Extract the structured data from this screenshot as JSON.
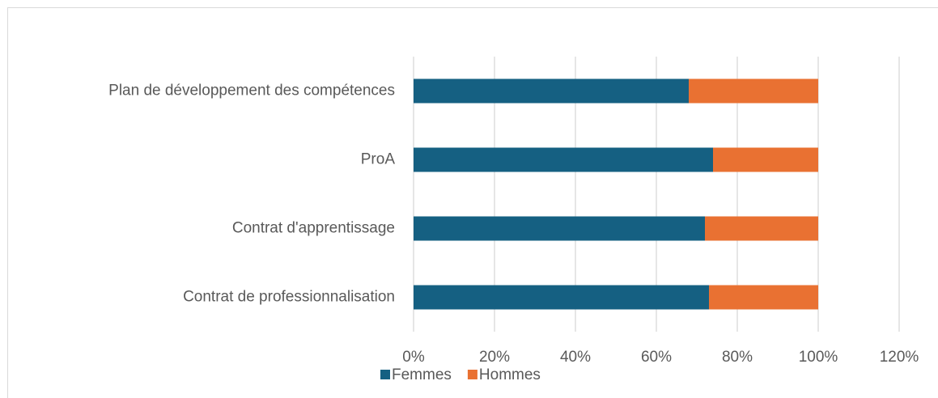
{
  "chart_data": {
    "type": "stacked-bar-horizontal",
    "categories": [
      "Plan de développement des compétences",
      "ProA",
      "Contrat d'apprentissage",
      "Contrat de professionnalisation"
    ],
    "series": [
      {
        "name": "Femmes",
        "color": "#156082",
        "values": [
          68,
          74,
          72,
          73
        ]
      },
      {
        "name": "Hommes",
        "color": "#e97132",
        "values": [
          32,
          26,
          28,
          27
        ]
      }
    ],
    "xlim": [
      0,
      120
    ],
    "xticks": [
      {
        "value": 0,
        "label": "0%"
      },
      {
        "value": 20,
        "label": "20%"
      },
      {
        "value": 40,
        "label": "40%"
      },
      {
        "value": 60,
        "label": "60%"
      },
      {
        "value": 80,
        "label": "80%"
      },
      {
        "value": 100,
        "label": "100%"
      },
      {
        "value": 120,
        "label": "120%"
      }
    ],
    "grid": true,
    "legend": "bottom"
  }
}
